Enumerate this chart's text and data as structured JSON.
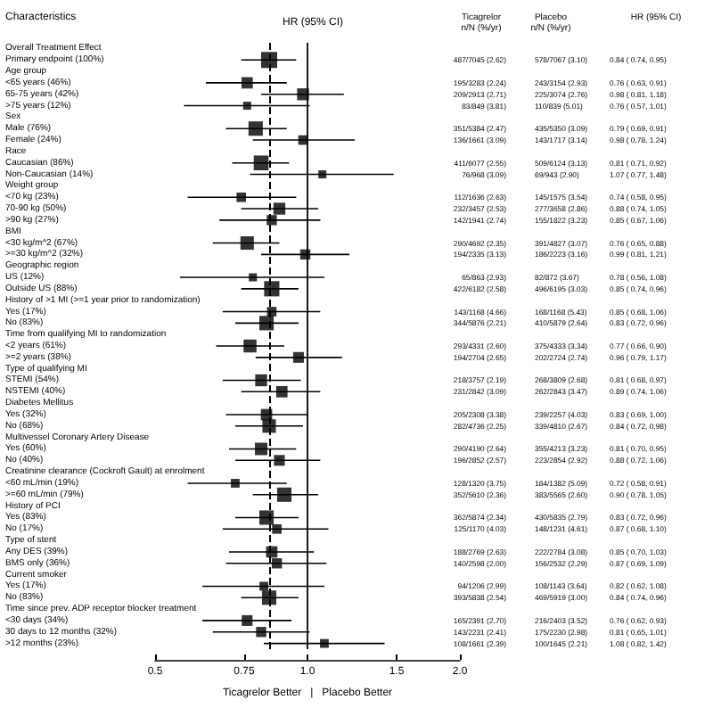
{
  "chart_data": {
    "type": "bubble",
    "orientation": "horizontal",
    "log": "x",
    "title": "HR (95% CI)",
    "ylabel": "Characteristics",
    "xlabel": "Ticagrelor Better   |   Placebo Better",
    "marker": "square",
    "grid": false,
    "legend": false,
    "xlim": [
      0.5,
      2.0
    ],
    "xticks": [
      0.5,
      0.75,
      {
        "value": 1,
        "label": "1.0"
      },
      1.5,
      {
        "value": 2,
        "label": "2.0"
      }
    ],
    "categories": [
      "Overall Treatment Effect",
      "Primary endpoint (100%)",
      "Age group",
      "<65 years (46%)",
      "65-75 years (42%)",
      ">75 years (12%)",
      "Sex",
      "Male (76%)",
      "Female (24%)",
      "Race",
      "Caucasian (86%)",
      "Non-Caucasian (14%)",
      "Weight group",
      "<70 kg (23%)",
      "70-90 kg (50%)",
      ">90 kg (27%)",
      "BMI",
      "<30 kg/m^2 (67%)",
      ">=30 kg/m^2 (32%)",
      "Geographic region",
      "US (12%)",
      "Outside US (88%)",
      "History of >1 MI (>=1 year prior to randomization)",
      "Yes (17%)",
      "No (83%)",
      "Time from qualifying MI to randomization",
      "<2 years (61%)",
      ">=2 years (38%)",
      "Type of qualifying MI",
      "STEMI (54%)",
      "NSTEMI (40%)",
      "Diabetes Mellitus",
      "Yes (32%)",
      "No (68%)",
      "Multivessel Coronary Artery Disease",
      "Yes (60%)",
      "No (40%)",
      "Creatinine clearance (Cockroft Gault) at enrolment",
      "<60 mL/min (19%)",
      ">=60 mL/min (79%)",
      "History of PCI",
      "Yes (83%)",
      "No (17%)",
      "Type of stent",
      "Any DES (39%)",
      "BMS only (36%)",
      "Current smoker",
      "Yes (17%)",
      "No (83%)",
      "Time since prev. ADP receptor blocker treatment",
      "<30 days (34%)",
      "30 days to 12 months (32%)",
      ">12 months (23%)"
    ],
    "ref_lines": [
      {
        "axis": "x",
        "value": 1,
        "label": null,
        "color": "#000000",
        "line_style": "solid"
      },
      {
        "axis": "x",
        "value": 0.84,
        "label": null,
        "color": "#000000",
        "line_style": "dashed"
      }
    ],
    "series": [
      {
        "name": "HR (95% CI)",
        "color": "#000000",
        "values": [
          null,
          0.84,
          null,
          0.76,
          0.98,
          0.76,
          null,
          0.79,
          0.98,
          null,
          0.81,
          1.07,
          null,
          0.74,
          0.88,
          0.85,
          null,
          0.76,
          0.99,
          null,
          0.78,
          0.85,
          null,
          0.85,
          0.83,
          null,
          0.77,
          0.96,
          null,
          0.81,
          0.89,
          null,
          0.83,
          0.84,
          null,
          0.81,
          0.88,
          null,
          0.72,
          0.9,
          null,
          0.83,
          0.87,
          null,
          0.85,
          0.87,
          null,
          0.82,
          0.84,
          null,
          0.76,
          0.81,
          1.08
        ],
        "errors": [
          null,
          [
            0.74,
            0.95
          ],
          null,
          [
            0.63,
            0.91
          ],
          [
            0.81,
            1.18
          ],
          [
            0.57,
            1.01
          ],
          null,
          [
            0.69,
            0.91
          ],
          [
            0.78,
            1.24
          ],
          null,
          [
            0.71,
            0.92
          ],
          [
            0.77,
            1.48
          ],
          null,
          [
            0.58,
            0.95
          ],
          [
            0.74,
            1.05
          ],
          [
            0.67,
            1.06
          ],
          null,
          [
            0.65,
            0.88
          ],
          [
            0.81,
            1.21
          ],
          null,
          [
            0.56,
            1.08
          ],
          [
            0.74,
            0.96
          ],
          null,
          [
            0.68,
            1.06
          ],
          [
            0.72,
            0.96
          ],
          null,
          [
            0.66,
            0.9
          ],
          [
            0.79,
            1.17
          ],
          null,
          [
            0.68,
            0.97
          ],
          [
            0.74,
            1.06
          ],
          null,
          [
            0.69,
            1.0
          ],
          [
            0.72,
            0.98
          ],
          null,
          [
            0.7,
            0.95
          ],
          [
            0.72,
            1.06
          ],
          null,
          [
            0.58,
            0.91
          ],
          [
            0.78,
            1.05
          ],
          null,
          [
            0.72,
            0.96
          ],
          [
            0.68,
            1.1
          ],
          null,
          [
            0.7,
            1.03
          ],
          [
            0.69,
            1.09
          ],
          null,
          [
            0.62,
            1.08
          ],
          [
            0.74,
            0.96
          ],
          null,
          [
            0.62,
            0.93
          ],
          [
            0.65,
            1.01
          ],
          [
            0.82,
            1.42
          ]
        ],
        "sizes": [
          null,
          1,
          null,
          0.5,
          0.55,
          0.25,
          null,
          0.8,
          0.35,
          null,
          0.85,
          0.25,
          null,
          0.35,
          0.55,
          0.4,
          null,
          0.7,
          0.4,
          null,
          0.25,
          0.9,
          null,
          0.35,
          0.8,
          null,
          0.65,
          0.45,
          null,
          0.55,
          0.5,
          null,
          0.5,
          0.7,
          null,
          0.6,
          0.45,
          null,
          0.3,
          0.8,
          null,
          0.8,
          0.35,
          null,
          0.5,
          0.4,
          null,
          0.3,
          0.8,
          null,
          0.45,
          0.4,
          0.3
        ],
        "value_labels": [
          null,
          "0.84 ( 0.74, 0.95)",
          null,
          "0.76 ( 0.63, 0.91)",
          "0.98 ( 0.81, 1.18)",
          "0.76 ( 0.57, 1.01)",
          null,
          "0.79 ( 0.69, 0.91)",
          "0.98 ( 0.78, 1.24)",
          null,
          "0.81 ( 0.71, 0.92)",
          "1.07 ( 0.77, 1.48)",
          null,
          "0.74 ( 0.58, 0.95)",
          "0.88 ( 0.74, 1.05)",
          "0.85 ( 0.67, 1.06)",
          null,
          "0.76 ( 0.65, 0.88)",
          "0.99 ( 0.81, 1.21)",
          null,
          "0.78 ( 0.56, 1.08)",
          "0.85 ( 0.74, 0.96)",
          null,
          "0.85 ( 0.68, 1.06)",
          "0.83 ( 0.72, 0.96)",
          null,
          "0.77 ( 0.66, 0.90)",
          "0.96 ( 0.79, 1.17)",
          null,
          "0.81 ( 0.68, 0.97)",
          "0.89 ( 0.74, 1.06)",
          null,
          "0.83 ( 0.69, 1.00)",
          "0.84 ( 0.72, 0.98)",
          null,
          "0.81 ( 0.70, 0.95)",
          "0.88 ( 0.72, 1.06)",
          null,
          "0.72 ( 0.58, 0.91)",
          "0.90 ( 0.78, 1.05)",
          null,
          "0.83 ( 0.72, 0.96)",
          "0.87 ( 0.68, 1.10)",
          null,
          "0.85 ( 0.70, 1.03)",
          "0.87 ( 0.69, 1.09)",
          null,
          "0.82 ( 0.62, 1.08)",
          "0.84 ( 0.74, 0.96)",
          null,
          "0.76 ( 0.62, 0.93)",
          "0.81 ( 0.65, 1.01)",
          "1.08 ( 0.82, 1.42)"
        ]
      }
    ],
    "annotations": [
      "Ticagrelor\nn/N (%/yr)",
      "Placebo\nn/N (%/yr)",
      "487/7045 (2.62)",
      "578/7067 (3.10)",
      "195/3283 (2.24)",
      "243/3154 (2.93)",
      "209/2913 (2.71)",
      "225/3074 (2.76)",
      "83/849 (3.81)",
      "110/839 (5.01)",
      "351/5384 (2.47)",
      "435/5350 (3.09)",
      "136/1661 (3.09)",
      "143/1717 (3.14)",
      "411/6077 (2.55)",
      "509/6124 (3.13)",
      "76/968 (3.09)",
      "69/943 (2.90)",
      "112/1636 (2.63)",
      "145/1575 (3.54)",
      "232/3457 (2.53)",
      "277/3658 (2.86)",
      "142/1941 (2.74)",
      "155/1822 (3.23)",
      "290/4692 (2.35)",
      "391/4827 (3.07)",
      "194/2335 (3.13)",
      "186/2223 (3.16)",
      "65/863 (2.93)",
      "82/872 (3.67)",
      "422/6182 (2.58)",
      "496/6195 (3.03)",
      "143/1168 (4.66)",
      "168/1168 (5.43)",
      "344/5876 (2.21)",
      "410/5879 (2.64)",
      "293/4331 (2.60)",
      "375/4333 (3.34)",
      "194/2704 (2.65)",
      "202/2724 (2.74)",
      "218/3757 (2.19)",
      "268/3809 (2.68)",
      "231/2842 (3.09)",
      "262/2843 (3.47)",
      "205/2308 (3.38)",
      "239/2257 (4.03)",
      "282/4736 (2.25)",
      "339/4810 (2.67)",
      "290/4190 (2.64)",
      "355/4213 (3.23)",
      "196/2852 (2.57)",
      "223/2854 (2.92)",
      "128/1320 (3.75)",
      "184/1382 (5.09)",
      "352/5610 (2.36)",
      "383/5565 (2.60)",
      "362/5874 (2.34)",
      "430/5835 (2.79)",
      "125/1170 (4.03)",
      "148/1231 (4.61)",
      "188/2769 (2.63)",
      "222/2784 (3.08)",
      "140/2598 (2.00)",
      "156/2532 (2.29)",
      "94/1206 (2.99)",
      "108/1143 (3.64)",
      "393/5838 (2.54)",
      "469/5919 (3.00)",
      "165/2391 (2.70)",
      "216/2403 (3.52)",
      "143/2231 (2.41)",
      "175/2230 (2.98)",
      "108/1661 (2.39)",
      "100/1645 (2.21)"
    ]
  }
}
